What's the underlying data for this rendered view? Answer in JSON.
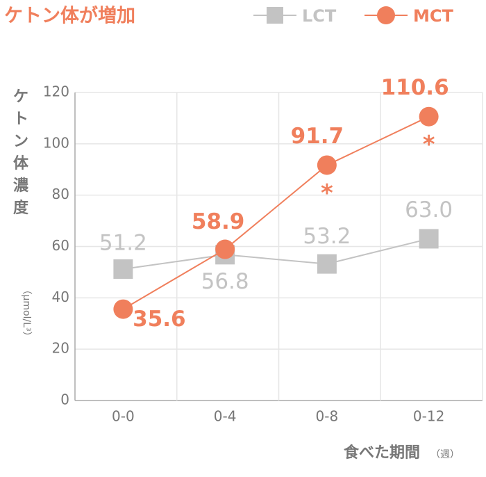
{
  "chart_data": {
    "type": "line",
    "title": "ケトン体が増加",
    "y_label": "ケトン体濃度",
    "y_unit": "（μmol/L³）",
    "x_label": "食べた期間",
    "x_unit": "（週）",
    "categories": [
      "0-0",
      "0-4",
      "0-8",
      "0-12"
    ],
    "series": [
      {
        "name": "LCT",
        "color": "#c3c3c3",
        "marker": "square",
        "values": [
          51.2,
          56.8,
          53.2,
          63.0
        ],
        "value_labels": [
          "51.2",
          "56.8",
          "53.2",
          "63.0"
        ]
      },
      {
        "name": "MCT",
        "color": "#f07f5c",
        "marker": "circle",
        "values": [
          35.6,
          58.9,
          91.7,
          110.6
        ],
        "value_labels": [
          "35.6",
          "58.9",
          "91.7",
          "110.6"
        ],
        "annotations": [
          null,
          null,
          "*",
          "*"
        ]
      }
    ],
    "ylim": [
      0,
      120
    ],
    "yticks": [
      0,
      20,
      40,
      60,
      80,
      100,
      120
    ],
    "grid": true
  }
}
